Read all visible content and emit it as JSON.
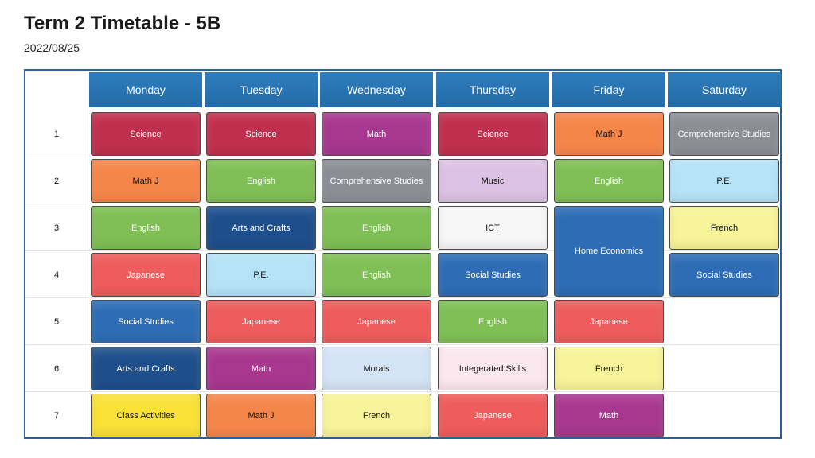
{
  "title": "Term 2 Timetable - 5B",
  "date": "2022/08/25",
  "days": [
    "Monday",
    "Tuesday",
    "Wednesday",
    "Thursday",
    "Friday",
    "Saturday"
  ],
  "periods": [
    "1",
    "2",
    "3",
    "4",
    "5",
    "6",
    "7"
  ],
  "subjects": {
    "Science": {
      "bg": "#c0304e",
      "fg": "#ffffff"
    },
    "Math": {
      "bg": "#a8388f",
      "fg": "#ffffff"
    },
    "Math J": {
      "bg": "#f5864a",
      "fg": "#111111"
    },
    "English": {
      "bg": "#7fbf55",
      "fg": "#ffffff"
    },
    "Comprehensive Studies": {
      "bg": "#8b8f95",
      "fg": "#ffffff"
    },
    "Music": {
      "bg": "#dcc2e4",
      "fg": "#111111"
    },
    "P.E.": {
      "bg": "#b5e3f8",
      "fg": "#111111"
    },
    "Arts and Crafts": {
      "bg": "#1e4f8c",
      "fg": "#ffffff"
    },
    "ICT": {
      "bg": "#f7f7f7",
      "fg": "#111111"
    },
    "French": {
      "bg": "#f8f49a",
      "fg": "#111111"
    },
    "Japanese": {
      "bg": "#ee5c5c",
      "fg": "#ffffff"
    },
    "Social Studies": {
      "bg": "#2e6db5",
      "fg": "#ffffff"
    },
    "Home Economics": {
      "bg": "#2e6db5",
      "fg": "#ffffff"
    },
    "Morals": {
      "bg": "#d4e3f6",
      "fg": "#111111"
    },
    "Integerated Skills": {
      "bg": "#fbe8ee",
      "fg": "#111111"
    },
    "Class Activities": {
      "bg": "#f9e138",
      "fg": "#111111"
    }
  },
  "schedule": [
    [
      {
        "subject": "Science"
      },
      {
        "subject": "Math J"
      },
      {
        "subject": "English"
      },
      {
        "subject": "Japanese"
      },
      {
        "subject": "Social Studies"
      },
      {
        "subject": "Arts and Crafts"
      },
      {
        "subject": "Class Activities"
      }
    ],
    [
      {
        "subject": "Science"
      },
      {
        "subject": "English"
      },
      {
        "subject": "Arts and Crafts"
      },
      {
        "subject": "P.E."
      },
      {
        "subject": "Japanese"
      },
      {
        "subject": "Math"
      },
      {
        "subject": "Math J"
      }
    ],
    [
      {
        "subject": "Math"
      },
      {
        "subject": "Comprehensive Studies"
      },
      {
        "subject": "English"
      },
      {
        "subject": "English"
      },
      {
        "subject": "Japanese"
      },
      {
        "subject": "Morals"
      },
      {
        "subject": "French"
      }
    ],
    [
      {
        "subject": "Science"
      },
      {
        "subject": "Music"
      },
      {
        "subject": "ICT"
      },
      {
        "subject": "Social Studies"
      },
      {
        "subject": "English"
      },
      {
        "subject": "Integerated Skills"
      },
      {
        "subject": "Japanese"
      }
    ],
    [
      {
        "subject": "Math J"
      },
      {
        "subject": "English"
      },
      {
        "subject": "Home Economics",
        "span": 2
      },
      {
        "subject": "Japanese"
      },
      {
        "subject": "French"
      },
      {
        "subject": "Math"
      }
    ],
    [
      {
        "subject": "Comprehensive Studies"
      },
      {
        "subject": "P.E."
      },
      {
        "subject": "French"
      },
      {
        "subject": "Social Studies"
      }
    ]
  ]
}
